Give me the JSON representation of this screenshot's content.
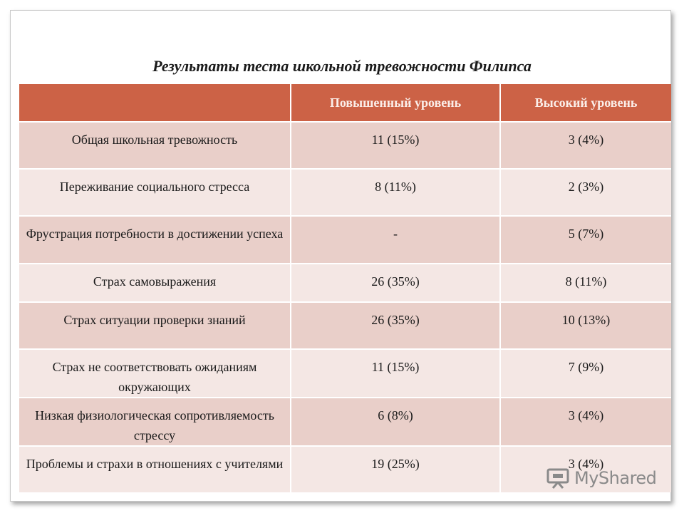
{
  "title": "Результаты теста школьной тревожности Филипса",
  "table": {
    "headers": [
      "",
      "Повышенный уровень",
      "Высокий уровень"
    ],
    "rows": [
      {
        "label": "Общая школьная тревожность",
        "elevated": "11 (15%)",
        "high": "3 (4%)"
      },
      {
        "label": "Переживание социального стресса",
        "elevated": "8 (11%)",
        "high": "2 (3%)"
      },
      {
        "label": "Фрустрация потребности в достижении успеха",
        "elevated": "-",
        "high": "5 (7%)"
      },
      {
        "label": "Страх самовыражения",
        "elevated": "26 (35%)",
        "high": "8 (11%)"
      },
      {
        "label": "Страх ситуации проверки знаний",
        "elevated": "26 (35%)",
        "high": "10 (13%)"
      },
      {
        "label": "Страх не соответствовать ожиданиям окружающих",
        "elevated": "11 (15%)",
        "high": "7 (9%)"
      },
      {
        "label": "Низкая физиологическая сопротивляемость стрессу",
        "elevated": "6 (8%)",
        "high": "3 (4%)"
      },
      {
        "label": "Проблемы и страхи в отношениях с учителями",
        "elevated": "19 (25%)",
        "high": "3 (4%)"
      }
    ]
  },
  "watermark": {
    "text": "MyShared",
    "icon": "presentation-board-icon"
  }
}
